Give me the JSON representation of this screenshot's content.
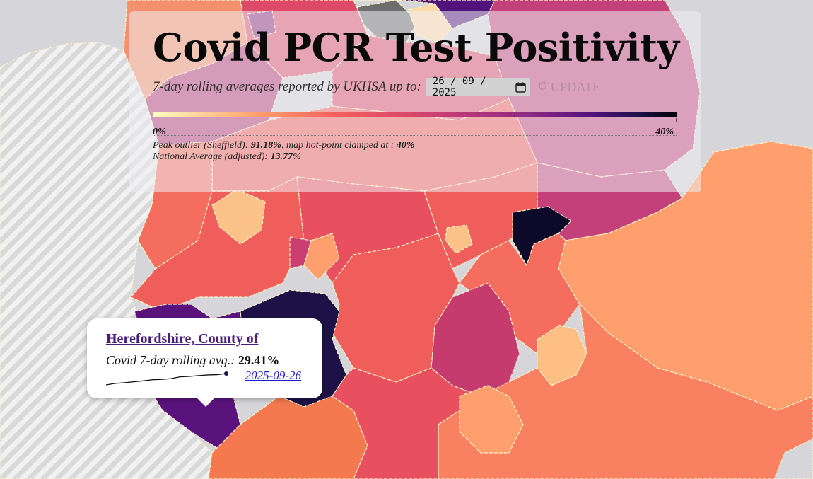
{
  "header": {
    "title": "Covid PCR Test Positivity",
    "subtitle": "7-day rolling averages reported by UKHSA up to:",
    "date_value": "26 / 09 / 2025",
    "update_label": "UPDATE",
    "update_icon": "refresh-icon",
    "calendar_icon": "calendar-icon"
  },
  "legend": {
    "min_label": "0%",
    "max_label": "40%",
    "min_value": 0,
    "max_value": 40,
    "colormap": "magma-reversed"
  },
  "notes": {
    "peak_prefix": "Peak outlier (Sheffield): ",
    "peak_value": "91.18%",
    "peak_middle": ", map hot-point clamped at : ",
    "clamp_value": "40%",
    "national_prefix": "National Average (adjusted): ",
    "national_value": "13.77%"
  },
  "tooltip": {
    "area_name": "Herefordshire, County of",
    "metric_label": "Covid 7-day rolling avg.: ",
    "metric_value": "29.41%",
    "date": "2025-09-26",
    "sparkline": [
      21.0,
      22.1,
      22.6,
      23.3,
      24.0,
      24.8,
      25.1,
      25.6,
      27.0,
      27.3,
      27.9,
      28.4,
      28.6,
      29.41
    ]
  },
  "colors": {
    "water": "#d6d6da",
    "hatch_land": "#efefef",
    "no_data": "#6e6e6e",
    "boundary": "#fdf4c8"
  }
}
